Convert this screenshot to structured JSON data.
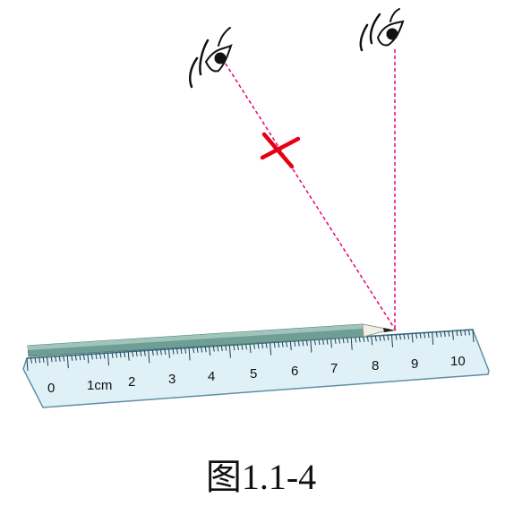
{
  "figure": {
    "caption": "图1.1-4",
    "ruler": {
      "unit_label": "1cm",
      "labels": [
        "0",
        "2",
        "3",
        "4",
        "5",
        "6",
        "7",
        "8",
        "9",
        "10"
      ],
      "fill_color": "#dff0f6",
      "edge_color": "#5f8fa5"
    },
    "pencil": {
      "body_color": "#6f9e94",
      "tip_color": "#f1f0e6"
    },
    "sight_lines": {
      "color": "#e8007d",
      "wrong_mark_color": "#e60012"
    },
    "icons": [
      "eye-icon",
      "eye-icon",
      "wrong-mark-icon"
    ]
  }
}
